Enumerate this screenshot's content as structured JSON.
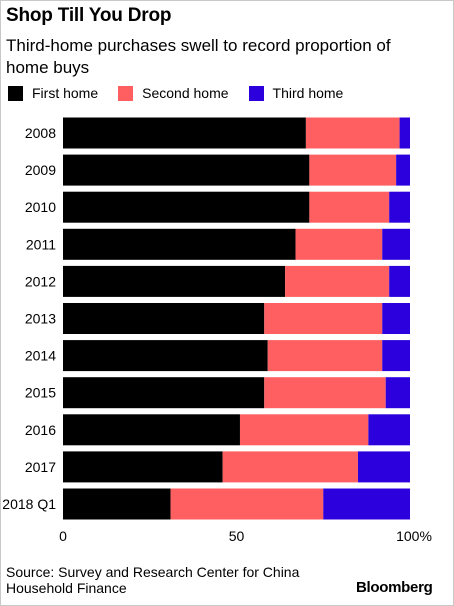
{
  "chart_data": {
    "type": "bar",
    "orientation": "horizontal",
    "stacked": true,
    "title": "Shop Till You Drop",
    "subtitle": "Third-home purchases swell to record proportion of home buys",
    "categories": [
      "2008",
      "2009",
      "2010",
      "2011",
      "2012",
      "2013",
      "2014",
      "2015",
      "2016",
      "2017",
      "2018 Q1"
    ],
    "series": [
      {
        "name": "First home",
        "color": "#000000",
        "values": [
          70,
          71,
          71,
          67,
          64,
          58,
          59,
          58,
          51,
          46,
          31
        ]
      },
      {
        "name": "Second home",
        "color": "#ff5f61",
        "values": [
          27,
          25,
          23,
          25,
          30,
          34,
          33,
          35,
          37,
          39,
          44
        ]
      },
      {
        "name": "Third home",
        "color": "#2b00dd",
        "values": [
          3,
          4,
          6,
          8,
          6,
          8,
          8,
          7,
          12,
          15,
          25
        ]
      }
    ],
    "xlim": [
      0,
      100
    ],
    "xticks": [
      "0",
      "50",
      "100%"
    ],
    "legend": "top-left",
    "grid": false
  },
  "source": "Source: Survey and Research Center for China Household Finance",
  "logo": "Bloomberg"
}
